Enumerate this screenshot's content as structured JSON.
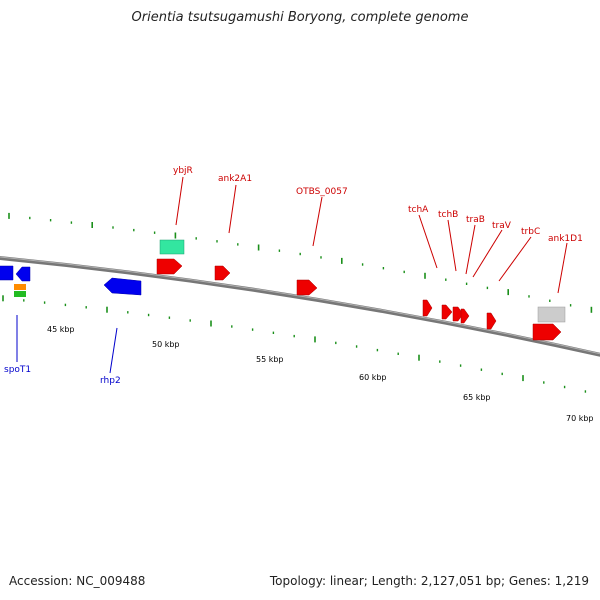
{
  "title": "Orientia tsutsugamushi Boryong, complete genome",
  "footer": {
    "accession": "Accession: NC_009488",
    "summary": "Topology: linear; Length: 2,127,051 bp; Genes: 1,219"
  },
  "colors": {
    "backbone": "#808080",
    "tick": "#1a8f1a",
    "forward_gene": "#ff0000",
    "reverse_gene": "#0000ff",
    "forward_label": "#cc0000",
    "reverse_label": "#0000cc",
    "rna_feature": "#33e6a0",
    "other_feature": "#cccccc"
  },
  "scale_labels": [
    "45 kbp",
    "50 kbp",
    "55 kbp",
    "60 kbp",
    "65 kbp",
    "70 kbp"
  ],
  "forward_gene_labels": [
    "ybjR",
    "ank2A1",
    "OTBS_0057",
    "tchA",
    "tchB",
    "traB",
    "traV",
    "trbC",
    "ank1D1"
  ],
  "reverse_gene_labels": [
    "spoT1",
    "rhp2"
  ]
}
